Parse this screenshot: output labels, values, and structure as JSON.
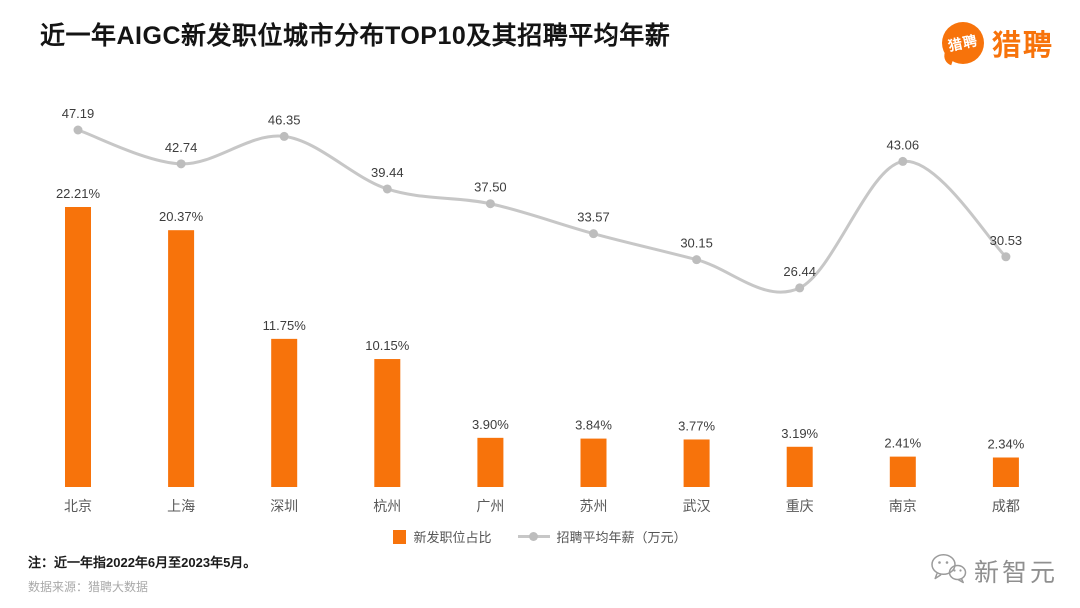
{
  "header": {
    "title": "近一年AIGC新发职位城市分布TOP10及其招聘平均年薪",
    "logo": {
      "badge_text": "猎聘",
      "brand_text": "猎聘"
    }
  },
  "chart_data": {
    "type": "bar+line",
    "title": "近一年AIGC新发职位城市分布TOP10及其招聘平均年薪",
    "categories": [
      "北京",
      "上海",
      "深圳",
      "杭州",
      "广州",
      "苏州",
      "武汉",
      "重庆",
      "南京",
      "成都"
    ],
    "series": [
      {
        "name": "新发职位占比",
        "type": "bar",
        "unit": "%",
        "color": "#F7730B",
        "values": [
          22.21,
          20.37,
          11.75,
          10.15,
          3.9,
          3.84,
          3.77,
          3.19,
          2.41,
          2.34
        ],
        "labels": [
          "22.21%",
          "20.37%",
          "11.75%",
          "10.15%",
          "3.90%",
          "3.84%",
          "3.77%",
          "3.19%",
          "2.41%",
          "2.34%"
        ]
      },
      {
        "name": "招聘平均年薪（万元）",
        "type": "line",
        "unit": "万元",
        "color": "#C7C7C7",
        "values": [
          47.19,
          42.74,
          46.35,
          39.44,
          37.5,
          33.57,
          30.15,
          26.44,
          43.06,
          30.53
        ],
        "labels": [
          "47.19",
          "42.74",
          "46.35",
          "39.44",
          "37.50",
          "33.57",
          "30.15",
          "26.44",
          "43.06",
          "30.53"
        ]
      }
    ],
    "legend_position": "bottom",
    "grid": false,
    "axes_visible": false
  },
  "footer": {
    "note": "注：近一年指2022年6月至2023年5月。",
    "source": "数据来源：猎聘大数据",
    "watermark": "新智元"
  },
  "colors": {
    "bar": "#F7730B",
    "line": "#C7C7C7",
    "brand_orange": "#F7730B",
    "watermark_gray": "#8f8f8f"
  }
}
